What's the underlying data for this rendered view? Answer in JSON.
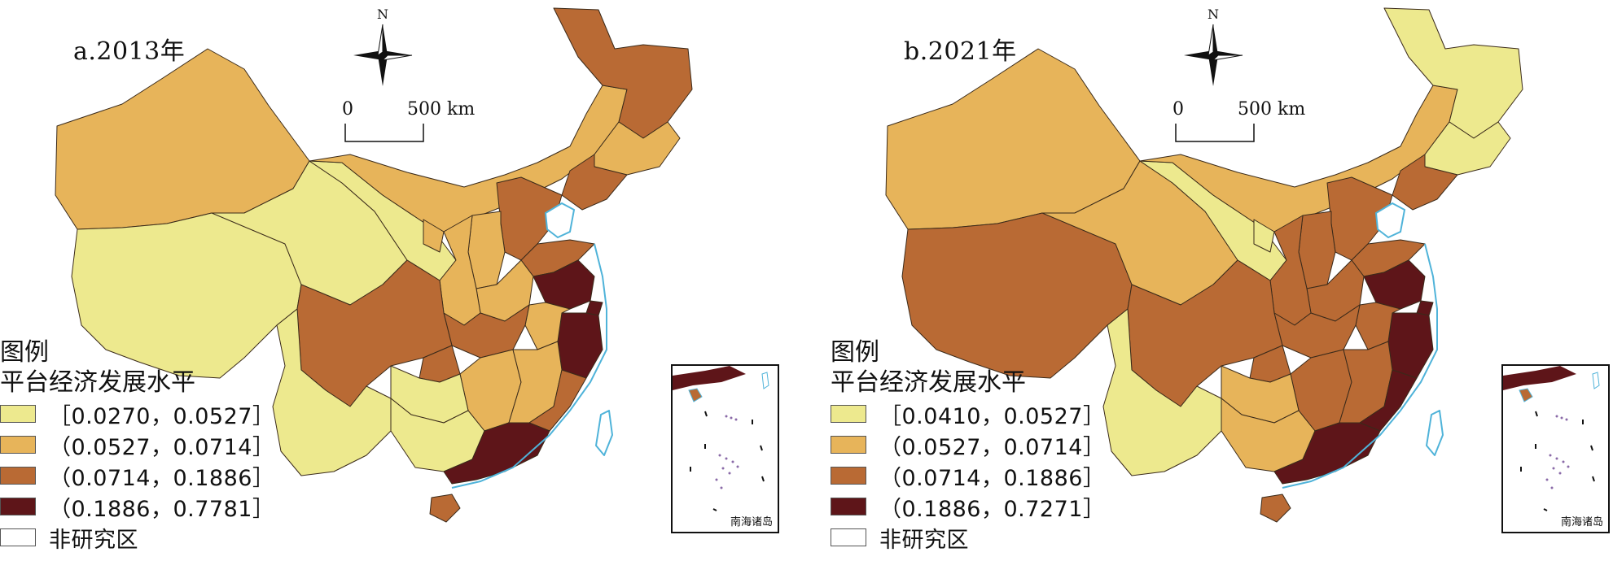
{
  "panels": [
    {
      "title": "a.2013年",
      "legend_heading": "图例",
      "legend_subheading": "平台经济发展水平",
      "legend_items": [
        {
          "label": "［0.0270，0.0527］",
          "color": "#EDE98E"
        },
        {
          "label": "（0.0527，0.0714］",
          "color": "#E7B45A"
        },
        {
          "label": "（0.0714，0.1886］",
          "color": "#B96A34"
        },
        {
          "label": "（0.1886，0.7781］",
          "color": "#5E1519"
        },
        {
          "label": "非研究区",
          "color": "#FFFFFF"
        }
      ]
    },
    {
      "title": "b.2021年",
      "legend_heading": "图例",
      "legend_subheading": "平台经济发展水平",
      "legend_items": [
        {
          "label": "［0.0410，0.0527］",
          "color": "#EDE98E"
        },
        {
          "label": "（0.0527，0.0714］",
          "color": "#E7B45A"
        },
        {
          "label": "（0.0714，0.1886］",
          "color": "#B96A34"
        },
        {
          "label": "（0.1886，0.7271］",
          "color": "#5E1519"
        },
        {
          "label": "非研究区",
          "color": "#FFFFFF"
        }
      ]
    }
  ],
  "north_label": "N",
  "scale_start": "0",
  "scale_end": "500 km",
  "inset_label": "南海诸岛",
  "colors": {
    "class1": "#EDE98E",
    "class2": "#E7B45A",
    "class3": "#B96A34",
    "class4": "#5E1519",
    "water": "#4FB3D9"
  }
}
